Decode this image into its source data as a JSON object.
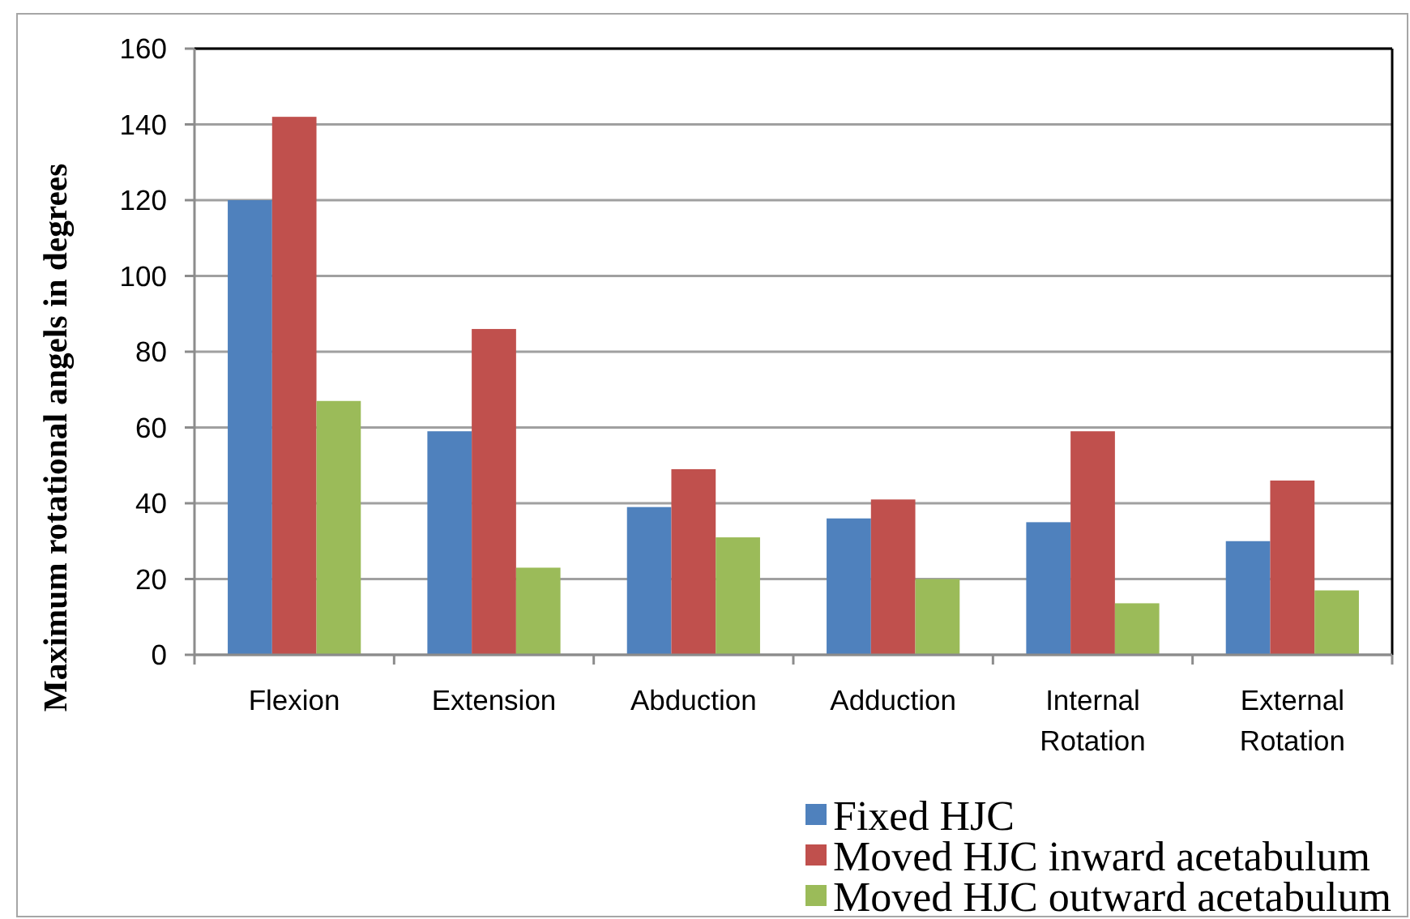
{
  "chart_data": {
    "type": "bar",
    "ylabel": "Maximum rotational angels in degrees",
    "categories": [
      "Flexion",
      "Extension",
      "Abduction",
      "Adduction",
      "Internal Rotation",
      "External Rotation"
    ],
    "series": [
      {
        "name": "Fixed HJC",
        "color": "#4f81bd",
        "values": [
          120,
          59,
          39,
          36,
          35,
          30
        ]
      },
      {
        "name": "Moved HJC inward acetabulum",
        "color": "#c0504d",
        "values": [
          142,
          86,
          49,
          41,
          59,
          46
        ]
      },
      {
        "name": "Moved HJC outward acetabulum",
        "color": "#9bbb59",
        "values": [
          67,
          23,
          31,
          20,
          13.6,
          17
        ]
      }
    ],
    "ylim": [
      0,
      160
    ],
    "yticks": [
      0,
      20,
      40,
      60,
      80,
      100,
      120,
      140,
      160
    ],
    "grid": "y",
    "legend": "bottom right"
  }
}
